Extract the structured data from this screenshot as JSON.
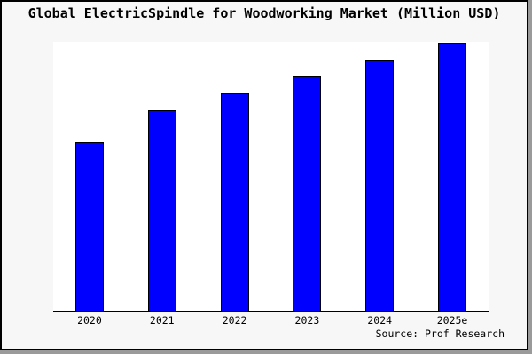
{
  "title": "Global ElectricSpindle for Woodworking Market (Million USD)",
  "source": "Source: Prof Research",
  "colors": {
    "bar_fill": "#0000fe",
    "bar_border": "#000000",
    "figure_bg": "#f7f7f7",
    "plot_bg": "#ffffff",
    "frame": "#000000",
    "shadow": "#9a9a9a"
  },
  "chart_data": {
    "type": "bar",
    "title": "Global ElectricSpindle for Woodworking Market (Million USD)",
    "categories": [
      "2020",
      "2021",
      "2022",
      "2023",
      "2024",
      "2025e"
    ],
    "values": [
      62.8,
      75.1,
      81.5,
      87.7,
      93.6,
      100
    ],
    "values_note": "no y-axis scale shown in chart; values estimated as relative bar heights normalized to 2025e = 100",
    "xlabel": "",
    "ylabel": "",
    "ylim": [
      0,
      100.7
    ],
    "grid": false,
    "legend": false,
    "y_axis_drawn": false,
    "x_axis_drawn": true,
    "source": "Source: Prof Research"
  }
}
